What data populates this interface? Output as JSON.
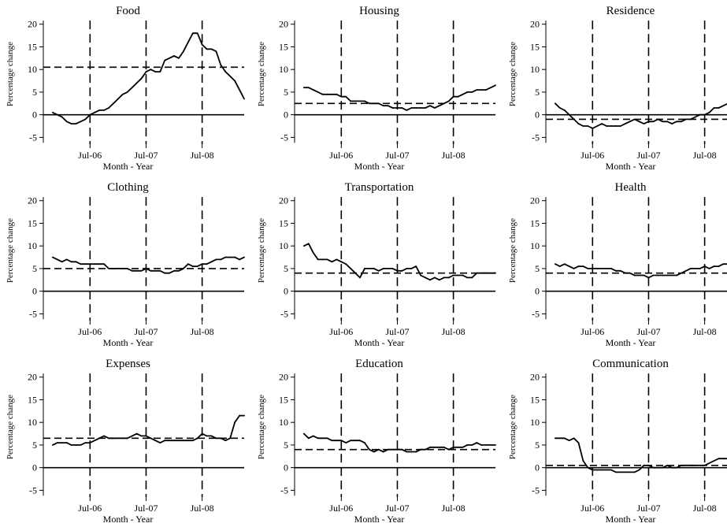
{
  "chart_data": [
    {
      "type": "line",
      "title": "Food",
      "xlabel": "Month - Year",
      "ylabel": "Percentage change",
      "ylim": [
        -6.5,
        21
      ],
      "yticks": [
        "-5",
        "0",
        "5",
        "10",
        "15",
        "20"
      ],
      "xticks": [
        "Jul-06",
        "Jul-07",
        "Jul-08"
      ],
      "vlines": [
        "Jul-06",
        "Jul-07",
        "Jul-08"
      ],
      "hline_mean": 10.5,
      "x": [
        "2005-11",
        "2005-12",
        "2006-01",
        "2006-02",
        "2006-03",
        "2006-04",
        "2006-05",
        "2006-06",
        "2006-07",
        "2006-08",
        "2006-09",
        "2006-10",
        "2006-11",
        "2006-12",
        "2007-01",
        "2007-02",
        "2007-03",
        "2007-04",
        "2007-05",
        "2007-06",
        "2007-07",
        "2007-08",
        "2007-09",
        "2007-10",
        "2007-11",
        "2007-12",
        "2008-01",
        "2008-02",
        "2008-03",
        "2008-04",
        "2008-05",
        "2008-06",
        "2008-07",
        "2008-08",
        "2008-09",
        "2008-10",
        "2008-11",
        "2008-12",
        "2009-01",
        "2009-02",
        "2009-03",
        "2009-04"
      ],
      "values": [
        0.5,
        0,
        -0.5,
        -1.5,
        -2,
        -2,
        -1.5,
        -1,
        0,
        0.5,
        1,
        1,
        1.5,
        2.5,
        3.5,
        4.5,
        5,
        6,
        7,
        8,
        9.5,
        10,
        9.5,
        9.5,
        12,
        12.5,
        13,
        12.5,
        14,
        16,
        18,
        18,
        15.5,
        14.5,
        14.5,
        14,
        11,
        9.5,
        8.5,
        7.5,
        5.5,
        3.5
      ]
    },
    {
      "type": "line",
      "title": "Housing",
      "xlabel": "Month - Year",
      "ylabel": "Percentage change",
      "ylim": [
        -6.5,
        21
      ],
      "yticks": [
        "-5",
        "0",
        "5",
        "10",
        "15",
        "20"
      ],
      "xticks": [
        "Jul-06",
        "Jul-07",
        "Jul-08"
      ],
      "vlines": [
        "Jul-06",
        "Jul-07",
        "Jul-08"
      ],
      "hline_mean": 2.5,
      "x": [
        "2005-11",
        "2005-12",
        "2006-01",
        "2006-02",
        "2006-03",
        "2006-04",
        "2006-05",
        "2006-06",
        "2006-07",
        "2006-08",
        "2006-09",
        "2006-10",
        "2006-11",
        "2006-12",
        "2007-01",
        "2007-02",
        "2007-03",
        "2007-04",
        "2007-05",
        "2007-06",
        "2007-07",
        "2007-08",
        "2007-09",
        "2007-10",
        "2007-11",
        "2007-12",
        "2008-01",
        "2008-02",
        "2008-03",
        "2008-04",
        "2008-05",
        "2008-06",
        "2008-07",
        "2008-08",
        "2008-09",
        "2008-10",
        "2008-11",
        "2008-12",
        "2009-01",
        "2009-02",
        "2009-03",
        "2009-04"
      ],
      "values": [
        6,
        6,
        5.5,
        5,
        4.5,
        4.5,
        4.5,
        4.5,
        4,
        4,
        3,
        3,
        3,
        3,
        2.5,
        2.5,
        2.5,
        2,
        2,
        1.5,
        1.5,
        1.5,
        1,
        1.5,
        1.5,
        1.5,
        1.5,
        2,
        1.5,
        2,
        2.5,
        3,
        4,
        4,
        4.5,
        5,
        5,
        5.5,
        5.5,
        5.5,
        6,
        6.5
      ]
    },
    {
      "type": "line",
      "title": "Residence",
      "xlabel": "Month - Year",
      "ylabel": "Percentage change",
      "ylim": [
        -6.5,
        21
      ],
      "yticks": [
        "-5",
        "0",
        "5",
        "10",
        "15",
        "20"
      ],
      "xticks": [
        "Jul-06",
        "Jul-07",
        "Jul-08"
      ],
      "vlines": [
        "Jul-06",
        "Jul-07",
        "Jul-08"
      ],
      "hline_mean": -1,
      "x": [
        "2005-11",
        "2005-12",
        "2006-01",
        "2006-02",
        "2006-03",
        "2006-04",
        "2006-05",
        "2006-06",
        "2006-07",
        "2006-08",
        "2006-09",
        "2006-10",
        "2006-11",
        "2006-12",
        "2007-01",
        "2007-02",
        "2007-03",
        "2007-04",
        "2007-05",
        "2007-06",
        "2007-07",
        "2007-08",
        "2007-09",
        "2007-10",
        "2007-11",
        "2007-12",
        "2008-01",
        "2008-02",
        "2008-03",
        "2008-04",
        "2008-05",
        "2008-06",
        "2008-07",
        "2008-08",
        "2008-09",
        "2008-10",
        "2008-11",
        "2008-12",
        "2009-01",
        "2009-02",
        "2009-03",
        "2009-04"
      ],
      "values": [
        2.5,
        1.5,
        1,
        0,
        -1,
        -2,
        -2.5,
        -2.5,
        -3,
        -2.5,
        -2,
        -2.5,
        -2.5,
        -2.5,
        -2.5,
        -2,
        -1.5,
        -1,
        -1.5,
        -2,
        -1.5,
        -1.5,
        -1,
        -1.5,
        -1.5,
        -2,
        -1.5,
        -1.5,
        -1,
        -1,
        -0.5,
        0,
        0,
        0.5,
        1.5,
        1.5,
        2,
        2.5,
        3,
        2.5,
        3,
        3
      ]
    },
    {
      "type": "line",
      "title": "Clothing",
      "xlabel": "Month - Year",
      "ylabel": "Percentage change",
      "ylim": [
        -6.5,
        21
      ],
      "yticks": [
        "-5",
        "0",
        "5",
        "10",
        "15",
        "20"
      ],
      "xticks": [
        "Jul-06",
        "Jul-07",
        "Jul-08"
      ],
      "vlines": [
        "Jul-06",
        "Jul-07",
        "Jul-08"
      ],
      "hline_mean": 5,
      "x": [
        "2005-11",
        "2005-12",
        "2006-01",
        "2006-02",
        "2006-03",
        "2006-04",
        "2006-05",
        "2006-06",
        "2006-07",
        "2006-08",
        "2006-09",
        "2006-10",
        "2006-11",
        "2006-12",
        "2007-01",
        "2007-02",
        "2007-03",
        "2007-04",
        "2007-05",
        "2007-06",
        "2007-07",
        "2007-08",
        "2007-09",
        "2007-10",
        "2007-11",
        "2007-12",
        "2008-01",
        "2008-02",
        "2008-03",
        "2008-04",
        "2008-05",
        "2008-06",
        "2008-07",
        "2008-08",
        "2008-09",
        "2008-10",
        "2008-11",
        "2008-12",
        "2009-01",
        "2009-02",
        "2009-03",
        "2009-04"
      ],
      "values": [
        7.5,
        7,
        6.5,
        7,
        6.5,
        6.5,
        6,
        6,
        6,
        6,
        6,
        6,
        5,
        5,
        5,
        5,
        5,
        4.5,
        4.5,
        4.5,
        5,
        4.5,
        4.5,
        4.5,
        4,
        4,
        4.5,
        4.5,
        5,
        6,
        5.5,
        5.5,
        6,
        6,
        6.5,
        7,
        7,
        7.5,
        7.5,
        7.5,
        7,
        7.5
      ]
    },
    {
      "type": "line",
      "title": "Transportation",
      "xlabel": "Month - Year",
      "ylabel": "Percentage change",
      "ylim": [
        -6.5,
        21
      ],
      "yticks": [
        "-5",
        "0",
        "5",
        "10",
        "15",
        "20"
      ],
      "xticks": [
        "Jul-06",
        "Jul-07",
        "Jul-08"
      ],
      "vlines": [
        "Jul-06",
        "Jul-07",
        "Jul-08"
      ],
      "hline_mean": 4,
      "x": [
        "2005-11",
        "2005-12",
        "2006-01",
        "2006-02",
        "2006-03",
        "2006-04",
        "2006-05",
        "2006-06",
        "2006-07",
        "2006-08",
        "2006-09",
        "2006-10",
        "2006-11",
        "2006-12",
        "2007-01",
        "2007-02",
        "2007-03",
        "2007-04",
        "2007-05",
        "2007-06",
        "2007-07",
        "2007-08",
        "2007-09",
        "2007-10",
        "2007-11",
        "2007-12",
        "2008-01",
        "2008-02",
        "2008-03",
        "2008-04",
        "2008-05",
        "2008-06",
        "2008-07",
        "2008-08",
        "2008-09",
        "2008-10",
        "2008-11",
        "2008-12",
        "2009-01",
        "2009-02",
        "2009-03",
        "2009-04"
      ],
      "values": [
        10,
        10.5,
        8.5,
        7,
        7,
        7,
        6.5,
        7,
        6.5,
        6,
        5,
        4,
        3,
        5,
        5,
        5,
        4.5,
        5,
        5,
        5,
        4.5,
        4.5,
        5,
        5,
        5.5,
        3.5,
        3,
        2.5,
        3,
        2.5,
        3,
        3,
        3.5,
        3.5,
        3.5,
        3,
        3,
        4,
        4,
        4,
        4,
        4
      ]
    },
    {
      "type": "line",
      "title": "Health",
      "xlabel": "Month - Year",
      "ylabel": "Percentage change",
      "ylim": [
        -6.5,
        21
      ],
      "yticks": [
        "-5",
        "0",
        "5",
        "10",
        "15",
        "20"
      ],
      "xticks": [
        "Jul-06",
        "Jul-07",
        "Jul-08"
      ],
      "vlines": [
        "Jul-06",
        "Jul-07",
        "Jul-08"
      ],
      "hline_mean": 4,
      "x": [
        "2005-11",
        "2005-12",
        "2006-01",
        "2006-02",
        "2006-03",
        "2006-04",
        "2006-05",
        "2006-06",
        "2006-07",
        "2006-08",
        "2006-09",
        "2006-10",
        "2006-11",
        "2006-12",
        "2007-01",
        "2007-02",
        "2007-03",
        "2007-04",
        "2007-05",
        "2007-06",
        "2007-07",
        "2007-08",
        "2007-09",
        "2007-10",
        "2007-11",
        "2007-12",
        "2008-01",
        "2008-02",
        "2008-03",
        "2008-04",
        "2008-05",
        "2008-06",
        "2008-07",
        "2008-08",
        "2008-09",
        "2008-10",
        "2008-11",
        "2008-12",
        "2009-01",
        "2009-02",
        "2009-03",
        "2009-04"
      ],
      "values": [
        6,
        5.5,
        6,
        5.5,
        5,
        5.5,
        5.5,
        5,
        5,
        5,
        5,
        5,
        5,
        4.5,
        4.5,
        4,
        4,
        3.5,
        3.5,
        3.5,
        3,
        3.5,
        3.5,
        3.5,
        3.5,
        3.5,
        3.5,
        4,
        4.5,
        5,
        5,
        5,
        5.5,
        5,
        5.5,
        5.5,
        6,
        6,
        6,
        6.5,
        6.5,
        6
      ]
    },
    {
      "type": "line",
      "title": "Expenses",
      "xlabel": "Month - Year",
      "ylabel": "Percentage change",
      "ylim": [
        -6.5,
        21
      ],
      "yticks": [
        "-5",
        "0",
        "5",
        "10",
        "15",
        "20"
      ],
      "xticks": [
        "Jul-06",
        "Jul-07",
        "Jul-08"
      ],
      "vlines": [
        "Jul-06",
        "Jul-07",
        "Jul-08"
      ],
      "hline_mean": 6.5,
      "x": [
        "2005-11",
        "2005-12",
        "2006-01",
        "2006-02",
        "2006-03",
        "2006-04",
        "2006-05",
        "2006-06",
        "2006-07",
        "2006-08",
        "2006-09",
        "2006-10",
        "2006-11",
        "2006-12",
        "2007-01",
        "2007-02",
        "2007-03",
        "2007-04",
        "2007-05",
        "2007-06",
        "2007-07",
        "2007-08",
        "2007-09",
        "2007-10",
        "2007-11",
        "2007-12",
        "2008-01",
        "2008-02",
        "2008-03",
        "2008-04",
        "2008-05",
        "2008-06",
        "2008-07",
        "2008-08",
        "2008-09",
        "2008-10",
        "2008-11",
        "2008-12",
        "2009-01",
        "2009-02",
        "2009-03",
        "2009-04"
      ],
      "values": [
        5,
        5.5,
        5.5,
        5.5,
        5,
        5,
        5,
        5.5,
        5.5,
        6,
        6.5,
        7,
        6.5,
        6.5,
        6.5,
        6.5,
        6.5,
        7,
        7.5,
        7,
        7,
        6.5,
        6,
        5.5,
        6,
        6,
        6,
        6,
        6,
        6,
        6,
        6.5,
        7.5,
        7,
        7,
        6.5,
        6.5,
        6,
        6.5,
        10,
        11.5,
        11.5
      ]
    },
    {
      "type": "line",
      "title": "Education",
      "xlabel": "Month - Year",
      "ylabel": "Percentage change",
      "ylim": [
        -6.5,
        21
      ],
      "yticks": [
        "-5",
        "0",
        "5",
        "10",
        "15",
        "20"
      ],
      "xticks": [
        "Jul-06",
        "Jul-07",
        "Jul-08"
      ],
      "vlines": [
        "Jul-06",
        "Jul-07",
        "Jul-08"
      ],
      "hline_mean": 4,
      "x": [
        "2005-11",
        "2005-12",
        "2006-01",
        "2006-02",
        "2006-03",
        "2006-04",
        "2006-05",
        "2006-06",
        "2006-07",
        "2006-08",
        "2006-09",
        "2006-10",
        "2006-11",
        "2006-12",
        "2007-01",
        "2007-02",
        "2007-03",
        "2007-04",
        "2007-05",
        "2007-06",
        "2007-07",
        "2007-08",
        "2007-09",
        "2007-10",
        "2007-11",
        "2007-12",
        "2008-01",
        "2008-02",
        "2008-03",
        "2008-04",
        "2008-05",
        "2008-06",
        "2008-07",
        "2008-08",
        "2008-09",
        "2008-10",
        "2008-11",
        "2008-12",
        "2009-01",
        "2009-02",
        "2009-03",
        "2009-04"
      ],
      "values": [
        7.5,
        6.5,
        7,
        6.5,
        6.5,
        6.5,
        6,
        6,
        6,
        5.5,
        6,
        6,
        6,
        5.5,
        4,
        3.5,
        4,
        3.5,
        4,
        4,
        4,
        4,
        3.5,
        3.5,
        3.5,
        4,
        4,
        4.5,
        4.5,
        4.5,
        4.5,
        4,
        4.5,
        4.5,
        4.5,
        5,
        5,
        5.5,
        5,
        5,
        5,
        5
      ]
    },
    {
      "type": "line",
      "title": "Communication",
      "xlabel": "Month - Year",
      "ylabel": "Percentage change",
      "ylim": [
        -6.5,
        21
      ],
      "yticks": [
        "-5",
        "0",
        "5",
        "10",
        "15",
        "20"
      ],
      "xticks": [
        "Jul-06",
        "Jul-07",
        "Jul-08"
      ],
      "vlines": [
        "Jul-06",
        "Jul-07",
        "Jul-08"
      ],
      "hline_mean": 0.5,
      "x": [
        "2005-11",
        "2005-12",
        "2006-01",
        "2006-02",
        "2006-03",
        "2006-04",
        "2006-05",
        "2006-06",
        "2006-07",
        "2006-08",
        "2006-09",
        "2006-10",
        "2006-11",
        "2006-12",
        "2007-01",
        "2007-02",
        "2007-03",
        "2007-04",
        "2007-05",
        "2007-06",
        "2007-07",
        "2007-08",
        "2007-09",
        "2007-10",
        "2007-11",
        "2007-12",
        "2008-01",
        "2008-02",
        "2008-03",
        "2008-04",
        "2008-05",
        "2008-06",
        "2008-07",
        "2008-08",
        "2008-09",
        "2008-10",
        "2008-11",
        "2008-12",
        "2009-01",
        "2009-02",
        "2009-03",
        "2009-04"
      ],
      "values": [
        6.5,
        6.5,
        6.5,
        6,
        6.5,
        5.5,
        1.5,
        0,
        -0.5,
        -0.5,
        -0.5,
        -0.5,
        -0.5,
        -1,
        -1,
        -1,
        -1,
        -1,
        -0.5,
        0.5,
        0.5,
        0,
        0,
        0,
        0.5,
        0,
        0,
        0.5,
        0.5,
        0.5,
        0.5,
        0.5,
        0.5,
        1,
        1.5,
        2,
        2,
        2,
        2,
        2,
        2,
        1.5
      ]
    }
  ]
}
